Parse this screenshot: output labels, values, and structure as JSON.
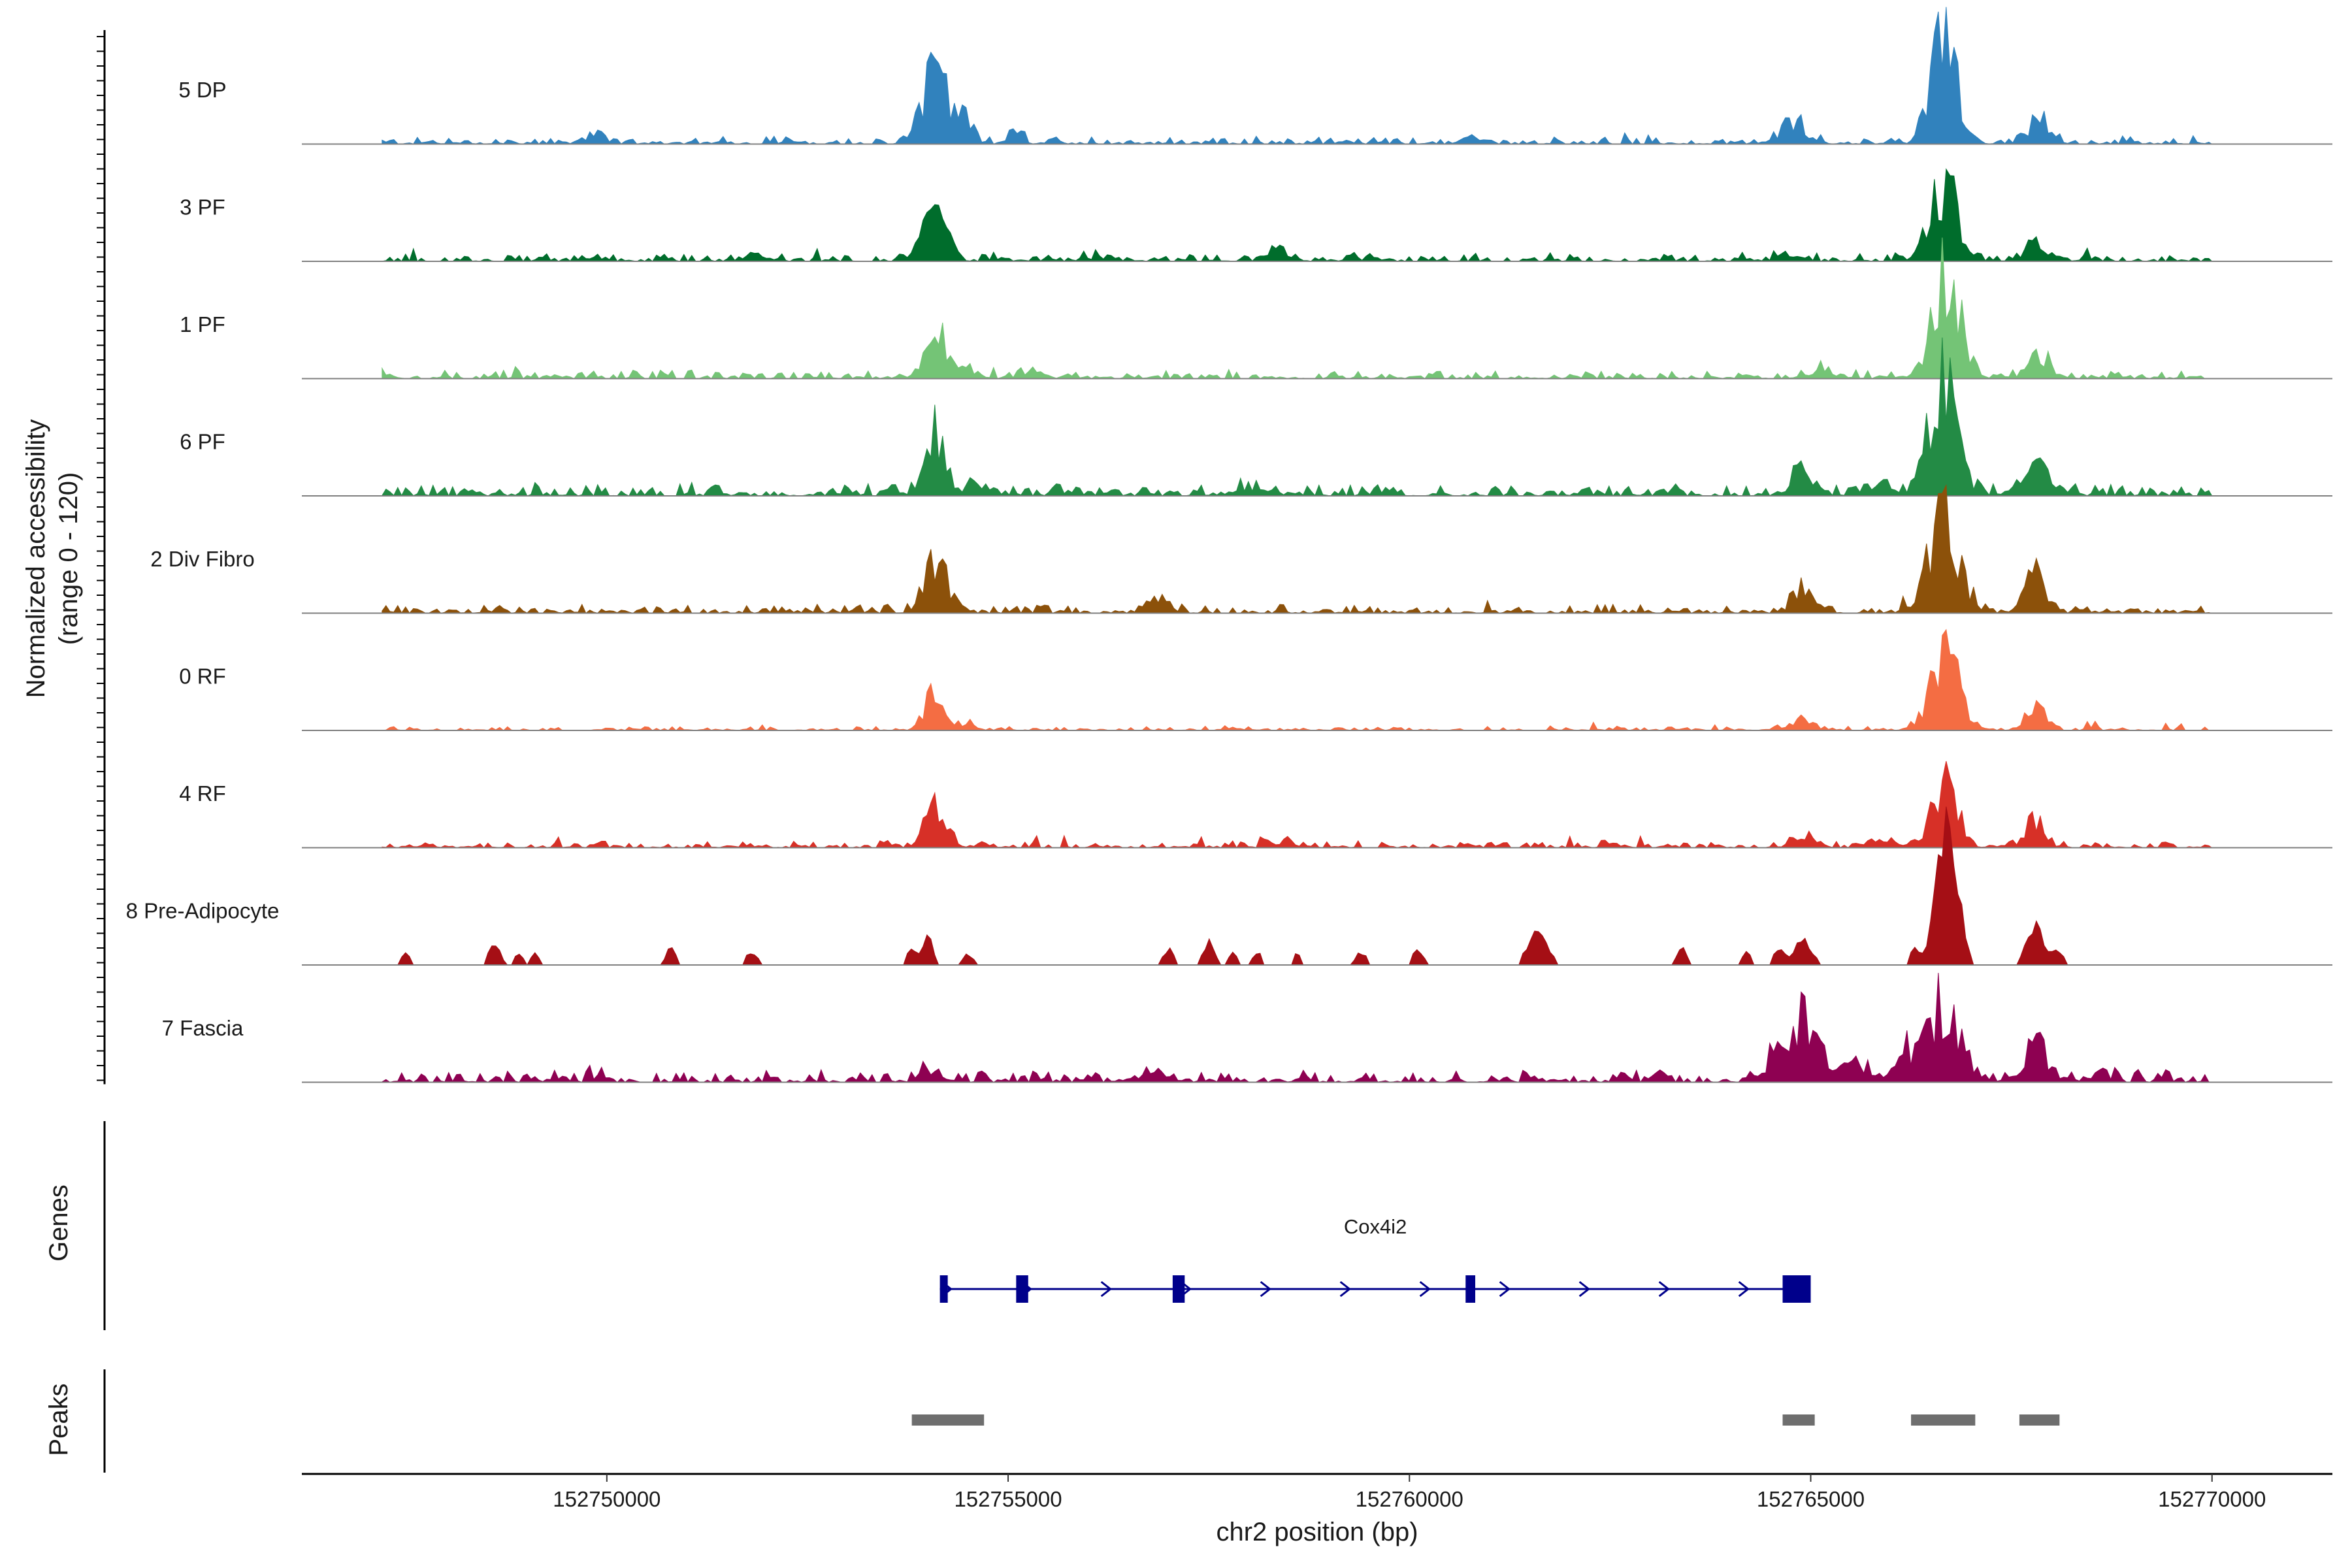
{
  "chart_data": {
    "type": "area",
    "title": "",
    "ylabel": "Normalized accessibility",
    "ylabel_range": "(range 0 - 120)",
    "ylim": [
      0,
      120
    ],
    "xlabel": "chr2 position (bp)",
    "xlim": [
      152746200,
      152771500
    ],
    "x_ticks": [
      152750000,
      152755000,
      152760000,
      152765000,
      152770000
    ],
    "x_tick_labels": [
      "152750000",
      "152755000",
      "152760000",
      "152765000",
      "152770000"
    ],
    "region_start": 152747200,
    "region_end": 152770000,
    "tracks": [
      {
        "name": "5 DP",
        "color": "#3182bd",
        "background": 2,
        "sparse": false,
        "peaks": [
          [
            152754080,
            70,
            200
          ],
          [
            152754450,
            25,
            130
          ],
          [
            152755100,
            13,
            110
          ],
          [
            152749800,
            7,
            150
          ],
          [
            152760800,
            8,
            150
          ],
          [
            152764800,
            18,
            220
          ],
          [
            152766670,
            105,
            220
          ],
          [
            152767850,
            22,
            180
          ]
        ]
      },
      {
        "name": "3 PF",
        "color": "#006d2c",
        "background": 2,
        "sparse": false,
        "peaks": [
          [
            152754100,
            45,
            200
          ],
          [
            152758400,
            10,
            180
          ],
          [
            152751800,
            6,
            180
          ],
          [
            152766650,
            73,
            220
          ],
          [
            152767800,
            16,
            200
          ],
          [
            152764700,
            7,
            180
          ]
        ]
      },
      {
        "name": "1 PF",
        "color": "#74c476",
        "background": 2,
        "sparse": false,
        "peaks": [
          [
            152754100,
            55,
            170
          ],
          [
            152754500,
            8,
            150
          ],
          [
            152755300,
            6,
            200
          ],
          [
            152766700,
            95,
            240
          ],
          [
            152767850,
            20,
            200
          ],
          [
            152765200,
            6,
            250
          ]
        ]
      },
      {
        "name": "6 PF",
        "color": "#238b45",
        "background": 3,
        "sparse": false,
        "peaks": [
          [
            152754100,
            55,
            170
          ],
          [
            152754600,
            10,
            200
          ],
          [
            152758000,
            7,
            300
          ],
          [
            152764900,
            22,
            200
          ],
          [
            152766650,
            108,
            240
          ],
          [
            152767830,
            28,
            200
          ],
          [
            152765800,
            9,
            250
          ]
        ]
      },
      {
        "name": "2 Div Fibro",
        "color": "#8c510a",
        "background": 2,
        "sparse": false,
        "peaks": [
          [
            152754100,
            45,
            200
          ],
          [
            152756900,
            15,
            170
          ],
          [
            152764900,
            22,
            170
          ],
          [
            152766650,
            93,
            250
          ],
          [
            152767800,
            35,
            170
          ]
        ]
      },
      {
        "name": "0 RF",
        "color": "#f46d43",
        "background": 1,
        "sparse": false,
        "peaks": [
          [
            152754100,
            42,
            170
          ],
          [
            152754500,
            8,
            130
          ],
          [
            152764900,
            10,
            200
          ],
          [
            152766680,
            70,
            250
          ],
          [
            152767800,
            25,
            170
          ]
        ]
      },
      {
        "name": "4 RF",
        "color": "#d73027",
        "background": 1.5,
        "sparse": false,
        "peaks": [
          [
            152754100,
            42,
            170
          ],
          [
            152758400,
            6,
            180
          ],
          [
            152764900,
            9,
            200
          ],
          [
            152766680,
            55,
            220
          ],
          [
            152767800,
            25,
            170
          ],
          [
            152765900,
            8,
            180
          ]
        ]
      },
      {
        "name": "8 Pre-Adipocyte",
        "color": "#a50f15",
        "background": 0,
        "sparse": true,
        "peaks": [
          [
            152747500,
            8,
            100
          ],
          [
            152748600,
            15,
            100
          ],
          [
            152748900,
            10,
            80
          ],
          [
            152749100,
            8,
            80
          ],
          [
            152750800,
            14,
            80
          ],
          [
            152751800,
            10,
            100
          ],
          [
            152753800,
            12,
            90
          ],
          [
            152754000,
            22,
            80
          ],
          [
            152754500,
            8,
            100
          ],
          [
            152757000,
            12,
            90
          ],
          [
            152757500,
            18,
            90
          ],
          [
            152757800,
            9,
            80
          ],
          [
            152758100,
            10,
            80
          ],
          [
            152758600,
            9,
            60
          ],
          [
            152759400,
            9,
            100
          ],
          [
            152760100,
            10,
            100
          ],
          [
            152761600,
            25,
            170
          ],
          [
            152763400,
            12,
            90
          ],
          [
            152764200,
            10,
            80
          ],
          [
            152764600,
            12,
            90
          ],
          [
            152764900,
            20,
            150
          ],
          [
            152766300,
            12,
            90
          ],
          [
            152766700,
            110,
            180
          ],
          [
            152767800,
            30,
            150
          ],
          [
            152768100,
            10,
            100
          ]
        ]
      },
      {
        "name": "7 Fascia",
        "color": "#8e0152",
        "background": 3,
        "sparse": false,
        "peaks": [
          [
            152764900,
            60,
            220
          ],
          [
            152764500,
            18,
            160
          ],
          [
            152765500,
            15,
            250
          ],
          [
            152766650,
            75,
            260
          ],
          [
            152766200,
            22,
            200
          ],
          [
            152767800,
            35,
            180
          ],
          [
            152754000,
            12,
            150
          ],
          [
            152756800,
            10,
            250
          ],
          [
            152768600,
            8,
            180
          ]
        ]
      }
    ],
    "gene_track_label": "Genes",
    "genes": [
      {
        "name": "Cox4i2",
        "strand": "+",
        "start": 152754150,
        "end": 152765000,
        "exons": [
          [
            152754150,
            152754200
          ],
          [
            152755100,
            152755250
          ],
          [
            152757050,
            152757200
          ],
          [
            152760700,
            152760820
          ],
          [
            152764650,
            152765000
          ]
        ],
        "color": "#00008b"
      }
    ],
    "peak_track_label": "Peaks",
    "peak_regions": [
      [
        152753800,
        152754700
      ],
      [
        152764650,
        152765050
      ],
      [
        152766250,
        152767050
      ],
      [
        152767600,
        152768100
      ]
    ],
    "peak_color": "#6e6e6e"
  }
}
